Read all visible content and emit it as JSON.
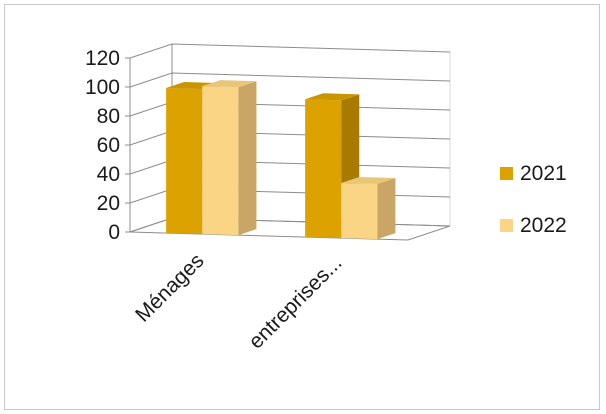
{
  "chart_data": {
    "type": "bar",
    "categories": [
      "Ménages",
      "entreprises..."
    ],
    "series": [
      {
        "name": "2021",
        "values": [
          100,
          95
        ]
      },
      {
        "name": "2022",
        "values": [
          102,
          38
        ]
      }
    ],
    "ylim": [
      0,
      120
    ],
    "yticks": [
      "0",
      "20",
      "40",
      "60",
      "80",
      "100",
      "120"
    ],
    "grid": true,
    "legend_position": "right",
    "colors": {
      "series": [
        "#dca300",
        "#f9d585"
      ],
      "series_side": [
        "#a87b00",
        "#c9a666"
      ],
      "series_top": [
        "#c99500",
        "#e8c678"
      ],
      "grid": "#8c8c8c",
      "wall": "#bfbfbf"
    }
  }
}
